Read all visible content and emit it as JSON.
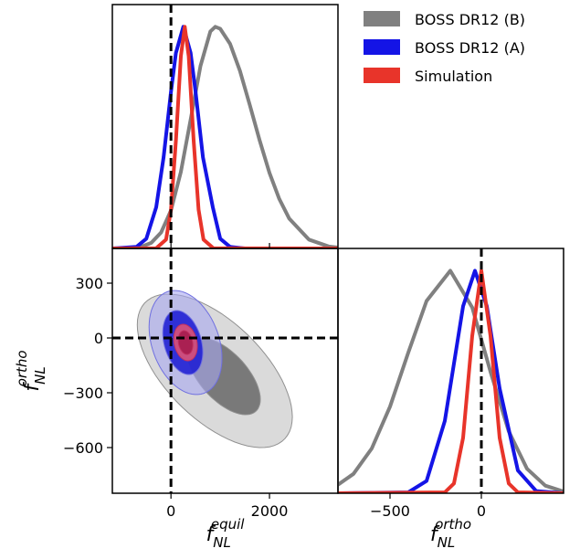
{
  "chart_data": [
    {
      "type": "line",
      "legend": "upper right",
      "tick_labels": false,
      "tick_direction": "in",
      "xlim": [
        -1190,
        3390
      ],
      "ylim": [
        0,
        1.1
      ],
      "xticks": [
        0,
        2000
      ],
      "vlines": [
        0
      ],
      "series": [
        {
          "name": "BOSS DR12 (B)",
          "color": "#808080",
          "x": [
            -1190,
            -1000,
            -600,
            -400,
            -200,
            0,
            200,
            400,
            600,
            800,
            900,
            1000,
            1200,
            1400,
            1600,
            1800,
            2000,
            2200,
            2400,
            2800,
            3200,
            3390
          ],
          "values": [
            0,
            0,
            0.008,
            0.025,
            0.072,
            0.172,
            0.345,
            0.581,
            0.823,
            0.979,
            1,
            0.991,
            0.923,
            0.801,
            0.647,
            0.487,
            0.341,
            0.223,
            0.135,
            0.04,
            0.009,
            0.004
          ]
        },
        {
          "name": "BOSS DR12 (A)",
          "color": "#1414e6",
          "x": [
            -1190,
            -700,
            -500,
            -300,
            -150,
            0,
            100,
            250,
            400,
            500,
            650,
            850,
            1000,
            1200,
            1500,
            3390
          ],
          "values": [
            0,
            0.007,
            0.044,
            0.186,
            0.411,
            0.707,
            0.882,
            1,
            0.882,
            0.707,
            0.411,
            0.186,
            0.044,
            0.007,
            0,
            0
          ]
        },
        {
          "name": "Simulation",
          "color": "#e8342a",
          "x": [
            -1190,
            -300,
            -100,
            0,
            100,
            200,
            280,
            360,
            460,
            560,
            660,
            860,
            3390
          ],
          "values": [
            0,
            0.001,
            0.04,
            0.175,
            0.487,
            0.867,
            1,
            0.867,
            0.487,
            0.175,
            0.04,
            0.001,
            0
          ]
        }
      ]
    },
    {
      "type": "contour",
      "tick_labels": true,
      "tick_direction": "out",
      "x_label": {
        "base": "f",
        "sub": "NL",
        "sup": "equil"
      },
      "y_label": {
        "base": "f",
        "sub": "NL",
        "sup": "ortho"
      },
      "xlim": [
        -1190,
        3390
      ],
      "ylim": [
        -850,
        490
      ],
      "xticks": [
        0,
        2000
      ],
      "yticks": [
        {
          "value": -600,
          "label": "−600"
        },
        {
          "value": -300,
          "label": "−300"
        },
        0,
        300
      ],
      "vlines": [
        0
      ],
      "hlines": [
        0
      ],
      "series": [
        {
          "color": "#909090",
          "levels": [
            {
              "cx": 890,
              "cy": -180,
              "sx": 1574,
              "sy": 420,
              "rho": -0.6,
              "fill": "#d4d4d4",
              "opacity": 0.85
            },
            {
              "cx": 1074,
              "cy": -210,
              "sx": 740,
              "sy": 210,
              "rho": -0.6,
              "fill": "#6e6e6e",
              "opacity": 0.9
            }
          ]
        },
        {
          "color": "#7070e0",
          "levels": [
            {
              "cx": 296,
              "cy": -25,
              "sx": 740,
              "sy": 285,
              "rho": -0.3,
              "fill": "#a8a8f0",
              "opacity": 0.6
            },
            {
              "cx": 240,
              "cy": -25,
              "sx": 407,
              "sy": 175,
              "rho": -0.3,
              "fill": "#2020d4",
              "opacity": 0.9
            }
          ]
        },
        {
          "color": "#c03060",
          "levels": [
            {
              "cx": 296,
              "cy": -25,
              "sx": 240,
              "sy": 100,
              "rho": -0.2,
              "fill": "#d4507a",
              "opacity": 0.95
            },
            {
              "cx": 296,
              "cy": -25,
              "sx": 148,
              "sy": 65,
              "rho": -0.2,
              "fill": "#a81e50",
              "opacity": 0.95
            }
          ]
        }
      ]
    },
    {
      "type": "line",
      "tick_labels": true,
      "tick_direction": "out",
      "x_label": {
        "base": "f",
        "sub": "NL",
        "sup": "ortho"
      },
      "xlim": [
        -785,
        450
      ],
      "ylim": [
        0,
        1.1
      ],
      "xticks": [
        {
          "value": -500,
          "label": "−500"
        },
        0
      ],
      "vlines": [
        0
      ],
      "series": [
        {
          "color": "#808080",
          "x": [
            -785,
            -700,
            -600,
            -500,
            -400,
            -300,
            -170,
            -50,
            50,
            150,
            250,
            350,
            450
          ],
          "values": [
            0.038,
            0.087,
            0.201,
            0.389,
            0.632,
            0.864,
            1,
            0.835,
            0.546,
            0.278,
            0.11,
            0.034,
            0.008
          ]
        },
        {
          "color": "#1414e6",
          "x": [
            -785,
            -400,
            -300,
            -200,
            -100,
            -35,
            30,
            100,
            200,
            300,
            450
          ],
          "values": [
            0,
            0.004,
            0.055,
            0.325,
            0.84,
            1,
            0.84,
            0.471,
            0.102,
            0.01,
            0
          ]
        },
        {
          "color": "#e8342a",
          "x": [
            -785,
            -200,
            -150,
            -100,
            -50,
            0,
            50,
            100,
            150,
            200,
            450
          ],
          "values": [
            0,
            0.004,
            0.044,
            0.249,
            0.707,
            1,
            0.707,
            0.249,
            0.044,
            0.004,
            0
          ]
        }
      ]
    }
  ]
}
